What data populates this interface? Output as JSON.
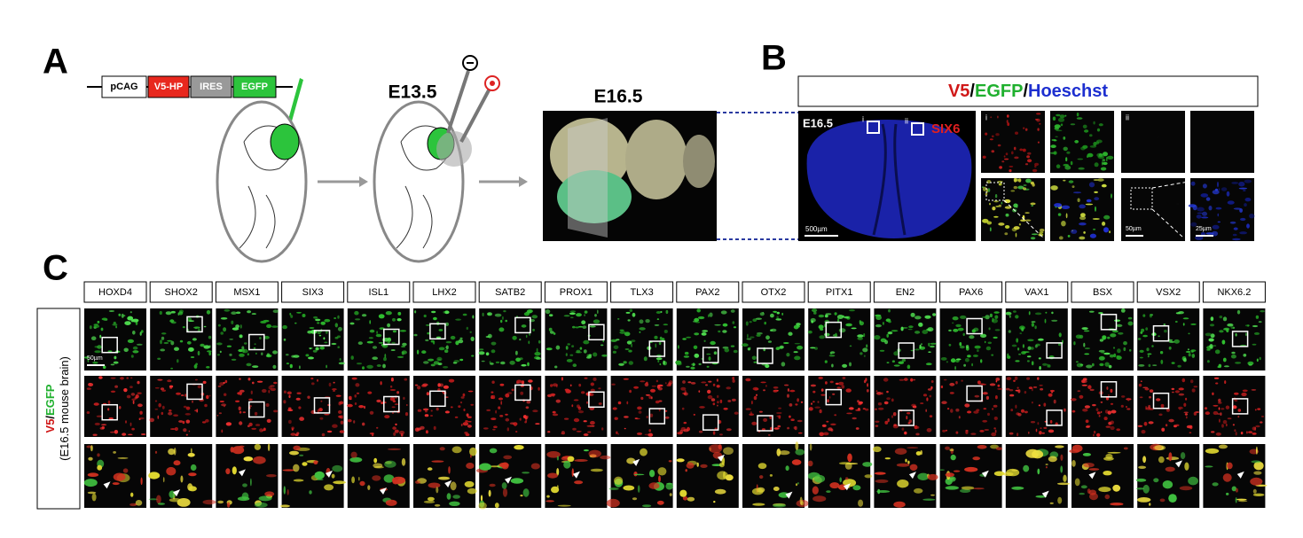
{
  "panel_a": {
    "label": "A",
    "construct": [
      "pCAG",
      "V5-HP",
      "IRES",
      "EGFP"
    ],
    "stages": [
      "E13.5",
      "E16.5"
    ]
  },
  "panel_b": {
    "label": "B",
    "header": [
      "V5",
      "/",
      "EGFP",
      "/",
      "Hoeschst"
    ],
    "section_stage": "E16.5",
    "roi": [
      "i",
      "ii"
    ],
    "marker": "SIX6",
    "scale_main": "500µm",
    "inset_labels": [
      "i",
      "ii"
    ],
    "scale_inset": [
      "50µm",
      "25µm"
    ]
  },
  "panel_c": {
    "label": "C",
    "genes": [
      "HOXD4",
      "SHOX2",
      "MSX1",
      "SIX3",
      "ISL1",
      "LHX2",
      "SATB2",
      "PROX1",
      "TLX3",
      "PAX2",
      "OTX2",
      "PITX1",
      "EN2",
      "PAX6",
      "VAX1",
      "BSX",
      "VSX2",
      "NKX6.2"
    ],
    "scale": "50µm",
    "side_label": [
      "V5",
      "/",
      "EGFP",
      "(E16.5 mouse brain)"
    ]
  }
}
